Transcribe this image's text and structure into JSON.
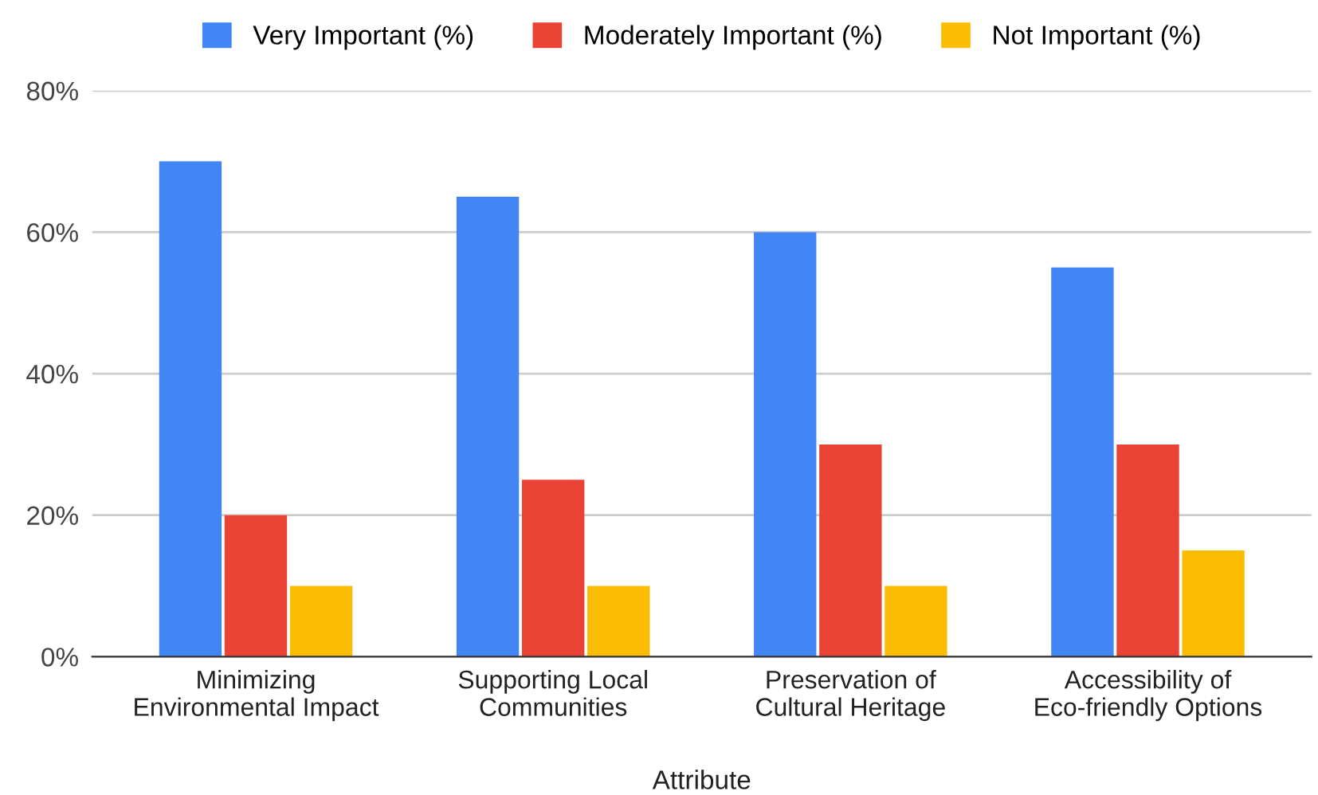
{
  "chart_data": {
    "type": "bar",
    "xlabel": "Attribute",
    "categories": [
      "Minimizing\nEnvironmental Impact",
      "Supporting Local\nCommunities",
      "Preservation of\nCultural Heritage",
      "Accessibility of\nEco-friendly Options"
    ],
    "series": [
      {
        "name": "Very Important (%)",
        "color": "#4285f4",
        "values": [
          70,
          65,
          60,
          55
        ]
      },
      {
        "name": "Moderately Important (%)",
        "color": "#ea4335",
        "values": [
          20,
          25,
          30,
          30
        ]
      },
      {
        "name": "Not Important (%)",
        "color": "#fbbc04",
        "values": [
          10,
          10,
          10,
          15
        ]
      }
    ],
    "ylim": [
      0,
      80
    ],
    "yticks": [
      {
        "value": 0,
        "label": "0%"
      },
      {
        "value": 20,
        "label": "20%"
      },
      {
        "value": 40,
        "label": "40%"
      },
      {
        "value": 60,
        "label": "60%"
      },
      {
        "value": 80,
        "label": "80%"
      }
    ],
    "grid": "y",
    "legend": "top"
  }
}
